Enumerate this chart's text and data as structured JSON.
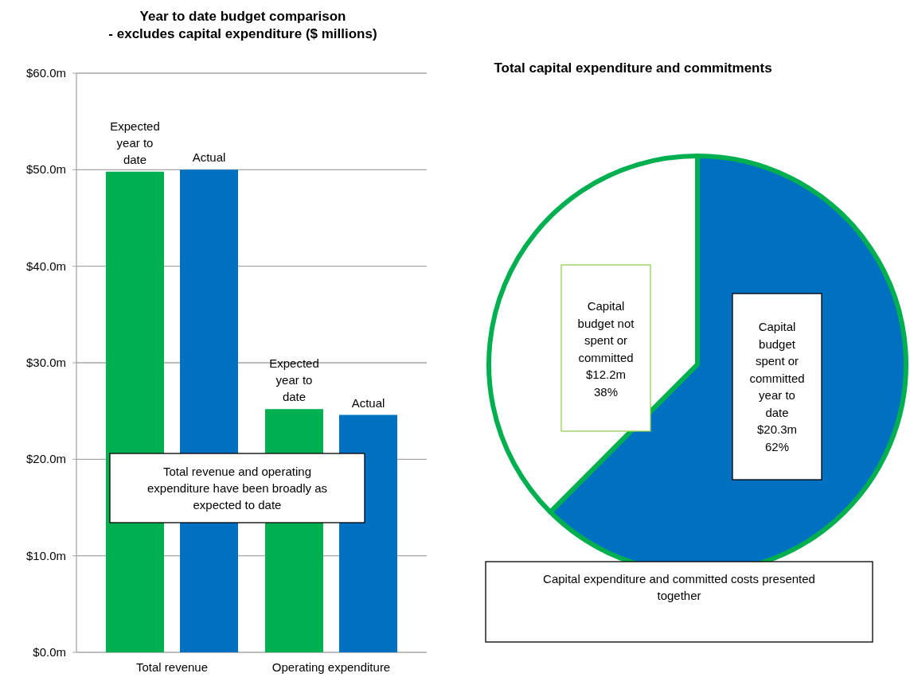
{
  "chart_data": [
    {
      "type": "bar",
      "title": "Year to date budget comparison\n- excludes capital expenditure ($ millions)",
      "categories": [
        "Total revenue",
        "Operating expenditure"
      ],
      "series": [
        {
          "name": "Expected year to date",
          "color": "#00b050",
          "values": [
            49.8,
            25.2
          ]
        },
        {
          "name": "Actual",
          "color": "#0070c0",
          "values": [
            50.0,
            24.6
          ]
        }
      ],
      "ylim": [
        0,
        60
      ],
      "yticks": [
        {
          "value": 0,
          "label": "$0.0m"
        },
        {
          "value": 10,
          "label": "$10.0m"
        },
        {
          "value": 20,
          "label": "$20.0m"
        },
        {
          "value": 30,
          "label": "$30.0m"
        },
        {
          "value": 40,
          "label": "$40.0m"
        },
        {
          "value": 50,
          "label": "$50.0m"
        },
        {
          "value": 60,
          "label": "$60.0m"
        }
      ],
      "grid": "y",
      "annotations": [
        "Total revenue and operating expenditure have been broadly as expected to date",
        "Expected year to date",
        "Actual"
      ]
    },
    {
      "type": "pie",
      "title": "Total capital expenditure and commitments",
      "categories": [
        "Capital budget spent or committed year to date",
        "Capital budget not spent or committed"
      ],
      "values": [
        20.3,
        12.2
      ],
      "colors": [
        "#0070c0",
        "#ffffff"
      ],
      "value_labels": [
        "$20.3m",
        "$12.2m"
      ],
      "annotations": [
        "Capital expenditure and committed costs presented together",
        {
          "text": "62%",
          "x": "Capital budget spent or committed year to date"
        },
        {
          "text": "38%",
          "x": "Capital budget not spent or committed"
        }
      ]
    }
  ]
}
